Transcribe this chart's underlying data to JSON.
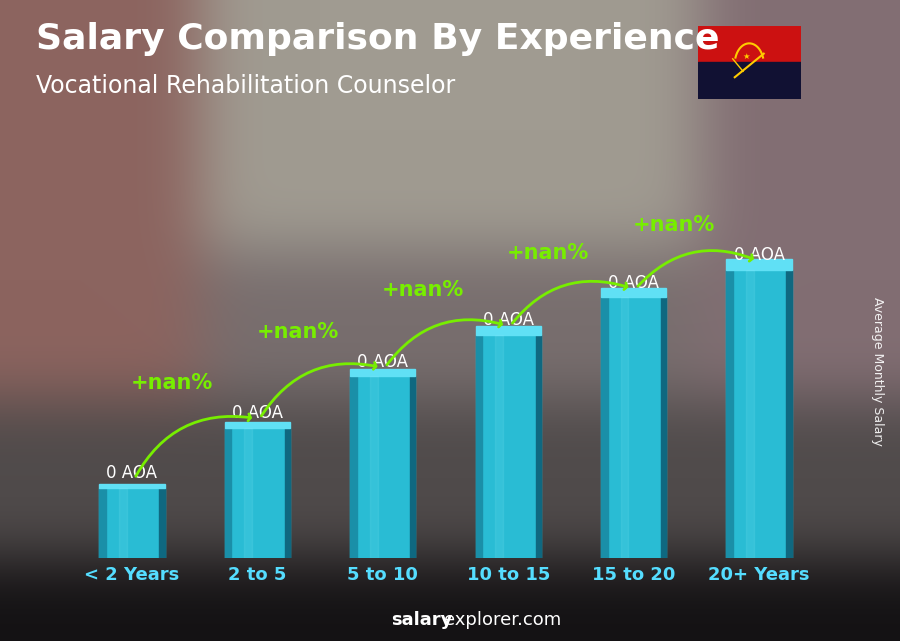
{
  "title": "Salary Comparison By Experience",
  "subtitle": "Vocational Rehabilitation Counselor",
  "categories": [
    "< 2 Years",
    "2 to 5",
    "5 to 10",
    "10 to 15",
    "15 to 20",
    "20+ Years"
  ],
  "bar_label": "0 AOA",
  "pct_label": "+nan%",
  "ylabel": "Average Monthly Salary",
  "footer_bold": "salary",
  "footer_normal": "explorer.com",
  "bar_face_color": "#29bcd4",
  "bar_left_color": "#1a8fa8",
  "bar_top_color": "#60e0f5",
  "bar_right_color": "#0f6880",
  "bar_highlight_color": "#90eeff",
  "arrow_color": "#77ee00",
  "text_white": "#ffffff",
  "text_cyan": "#55ddff",
  "bg_color": "#5a6a7a",
  "title_fontsize": 26,
  "subtitle_fontsize": 17,
  "tick_fontsize": 13,
  "label_fontsize": 12,
  "pct_fontsize": 15,
  "footer_fontsize": 13,
  "ylabel_fontsize": 9,
  "bar_heights": [
    1.5,
    2.8,
    3.9,
    4.8,
    5.6,
    6.2
  ],
  "ylim": [
    0,
    8.0
  ],
  "bar_width": 0.52,
  "flag_colors": [
    "#cc0000",
    "#222233"
  ],
  "flag_symbol_color": "#ffcc00"
}
